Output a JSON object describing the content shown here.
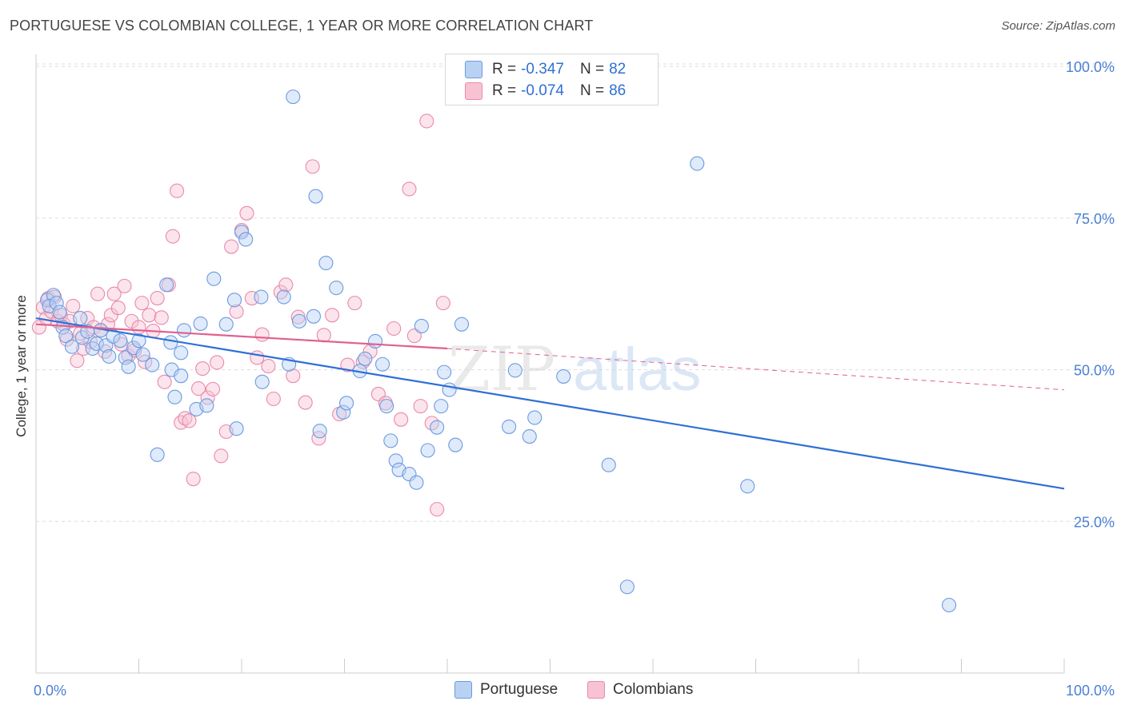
{
  "title": "PORTUGUESE VS COLOMBIAN COLLEGE, 1 YEAR OR MORE CORRELATION CHART",
  "source": "Source: ZipAtlas.com",
  "watermark": {
    "zip": "ZIP",
    "atlas": "atlas"
  },
  "colors": {
    "blue_fill": "#b9d1f3",
    "blue_stroke": "#6b9be0",
    "blue_line": "#2e6fd6",
    "pink_fill": "#f7c3d3",
    "pink_stroke": "#e98aab",
    "pink_line": "#e0608e",
    "axis_text": "#4a7fd4",
    "grid": "#dddddd"
  },
  "legend": {
    "rows": [
      {
        "r_label": "R =",
        "r_value": "-0.347",
        "n_label": "N =",
        "n_value": "82"
      },
      {
        "r_label": "R =",
        "r_value": "-0.074",
        "n_label": "N =",
        "n_value": "86"
      }
    ]
  },
  "bottom_legend": {
    "items": [
      "Portuguese",
      "Colombians"
    ]
  },
  "chart_data": {
    "type": "scatter",
    "title": "PORTUGUESE VS COLOMBIAN COLLEGE, 1 YEAR OR MORE CORRELATION CHART",
    "xlabel": "",
    "ylabel": "College, 1 year or more",
    "xlim": [
      0,
      100
    ],
    "ylim": [
      0,
      102
    ],
    "x_tick_labels": [
      "0.0%",
      "100.0%"
    ],
    "y_ticks": [
      25,
      50,
      75,
      100
    ],
    "y_tick_labels": [
      "25.0%",
      "50.0%",
      "75.0%",
      "100.0%"
    ],
    "grid": true,
    "series": [
      {
        "name": "Portuguese",
        "r": -0.347,
        "n": 82,
        "trend": {
          "x0": 0,
          "y0": 58.5,
          "x1": 100,
          "y1": 30.4
        },
        "points": [
          [
            1.1,
            61.5
          ],
          [
            1.7,
            62.3
          ],
          [
            1.3,
            60.5
          ],
          [
            2.0,
            61.0
          ],
          [
            2.3,
            59.5
          ],
          [
            2.6,
            57.0
          ],
          [
            2.9,
            55.6
          ],
          [
            3.5,
            53.8
          ],
          [
            4.3,
            58.5
          ],
          [
            4.5,
            55.3
          ],
          [
            5.0,
            56.3
          ],
          [
            5.5,
            53.5
          ],
          [
            5.9,
            54.3
          ],
          [
            6.3,
            56.5
          ],
          [
            6.8,
            54.0
          ],
          [
            7.1,
            52.2
          ],
          [
            7.5,
            55.5
          ],
          [
            8.2,
            54.8
          ],
          [
            8.7,
            52.0
          ],
          [
            9.0,
            50.5
          ],
          [
            9.5,
            53.6
          ],
          [
            10.0,
            54.8
          ],
          [
            10.4,
            52.5
          ],
          [
            11.3,
            50.8
          ],
          [
            12.7,
            64.0
          ],
          [
            13.2,
            50.0
          ],
          [
            14.1,
            49.0
          ],
          [
            15.6,
            43.5
          ],
          [
            16.6,
            44.1
          ],
          [
            13.5,
            45.5
          ],
          [
            11.8,
            36.0
          ],
          [
            14.1,
            52.8
          ],
          [
            13.1,
            54.5
          ],
          [
            14.4,
            56.5
          ],
          [
            16.0,
            57.6
          ],
          [
            17.3,
            65.0
          ],
          [
            18.5,
            57.5
          ],
          [
            19.3,
            61.5
          ],
          [
            19.5,
            40.3
          ],
          [
            20.0,
            72.7
          ],
          [
            20.4,
            71.5
          ],
          [
            21.9,
            62.0
          ],
          [
            22.0,
            48.0
          ],
          [
            24.1,
            62.0
          ],
          [
            24.6,
            50.9
          ],
          [
            25.0,
            95.0
          ],
          [
            25.6,
            58.0
          ],
          [
            27.2,
            78.6
          ],
          [
            27.0,
            58.8
          ],
          [
            27.6,
            39.9
          ],
          [
            28.2,
            67.6
          ],
          [
            29.2,
            63.5
          ],
          [
            29.9,
            43.0
          ],
          [
            30.2,
            44.5
          ],
          [
            33.7,
            50.9
          ],
          [
            31.5,
            49.8
          ],
          [
            32.0,
            51.8
          ],
          [
            33.0,
            54.7
          ],
          [
            34.1,
            44.0
          ],
          [
            35.0,
            35.0
          ],
          [
            34.5,
            38.3
          ],
          [
            35.3,
            33.5
          ],
          [
            36.3,
            32.8
          ],
          [
            37.0,
            31.4
          ],
          [
            37.5,
            57.2
          ],
          [
            38.1,
            36.7
          ],
          [
            39.0,
            40.5
          ],
          [
            39.4,
            44.0
          ],
          [
            39.7,
            49.6
          ],
          [
            40.2,
            46.7
          ],
          [
            40.8,
            37.6
          ],
          [
            41.4,
            57.5
          ],
          [
            46.0,
            40.6
          ],
          [
            46.6,
            49.9
          ],
          [
            48.0,
            39.0
          ],
          [
            48.5,
            42.1
          ],
          [
            51.3,
            48.9
          ],
          [
            55.7,
            34.3
          ],
          [
            57.5,
            14.2
          ],
          [
            64.3,
            84.0
          ],
          [
            69.2,
            30.8
          ],
          [
            88.8,
            11.2
          ]
        ]
      },
      {
        "name": "Colombians",
        "r": -0.074,
        "n": 86,
        "trend": {
          "x0": 0,
          "y0": 57.5,
          "x1": 40,
          "y1": 53.5,
          "dashed_to": {
            "x": 100,
            "y": 46.7
          }
        },
        "points": [
          [
            0.3,
            57.0
          ],
          [
            0.7,
            60.3
          ],
          [
            1.0,
            58.5
          ],
          [
            1.2,
            61.8
          ],
          [
            1.5,
            59.6
          ],
          [
            1.8,
            62.0
          ],
          [
            2.1,
            58.0
          ],
          [
            2.4,
            59.0
          ],
          [
            2.7,
            57.5
          ],
          [
            3.0,
            55.0
          ],
          [
            3.3,
            58.0
          ],
          [
            3.6,
            60.5
          ],
          [
            4.0,
            51.5
          ],
          [
            4.3,
            56.0
          ],
          [
            4.6,
            53.5
          ],
          [
            5.0,
            58.5
          ],
          [
            5.3,
            54.6
          ],
          [
            5.6,
            57.0
          ],
          [
            6.0,
            62.5
          ],
          [
            6.3,
            56.5
          ],
          [
            6.7,
            53.0
          ],
          [
            7.0,
            57.5
          ],
          [
            7.3,
            59.0
          ],
          [
            7.6,
            62.5
          ],
          [
            8.0,
            60.2
          ],
          [
            8.3,
            54.2
          ],
          [
            8.6,
            63.8
          ],
          [
            9.0,
            52.3
          ],
          [
            9.3,
            58.0
          ],
          [
            9.6,
            53.2
          ],
          [
            10.0,
            57.0
          ],
          [
            10.3,
            61.0
          ],
          [
            10.6,
            51.3
          ],
          [
            11.0,
            59.0
          ],
          [
            11.4,
            56.4
          ],
          [
            11.8,
            61.8
          ],
          [
            12.2,
            58.6
          ],
          [
            12.5,
            48.0
          ],
          [
            12.9,
            64.0
          ],
          [
            13.3,
            72.0
          ],
          [
            13.7,
            79.5
          ],
          [
            14.1,
            41.3
          ],
          [
            14.5,
            42.0
          ],
          [
            14.9,
            41.6
          ],
          [
            15.3,
            32.0
          ],
          [
            15.8,
            46.9
          ],
          [
            16.2,
            50.2
          ],
          [
            16.7,
            45.4
          ],
          [
            17.2,
            46.8
          ],
          [
            17.6,
            51.2
          ],
          [
            18.0,
            35.8
          ],
          [
            18.5,
            39.8
          ],
          [
            19.0,
            70.3
          ],
          [
            19.5,
            59.6
          ],
          [
            20.0,
            73.0
          ],
          [
            20.5,
            75.8
          ],
          [
            21.0,
            61.8
          ],
          [
            21.5,
            52.0
          ],
          [
            22.0,
            55.8
          ],
          [
            22.6,
            50.6
          ],
          [
            23.1,
            45.2
          ],
          [
            23.8,
            62.8
          ],
          [
            24.3,
            64.0
          ],
          [
            25.0,
            49.0
          ],
          [
            25.5,
            58.7
          ],
          [
            26.2,
            44.6
          ],
          [
            26.9,
            83.5
          ],
          [
            27.5,
            38.7
          ],
          [
            28.0,
            55.7
          ],
          [
            28.8,
            59.0
          ],
          [
            29.5,
            42.7
          ],
          [
            30.3,
            50.8
          ],
          [
            31.0,
            61.0
          ],
          [
            31.8,
            51.3
          ],
          [
            32.5,
            53.0
          ],
          [
            33.3,
            46.0
          ],
          [
            34.0,
            44.5
          ],
          [
            34.8,
            56.8
          ],
          [
            35.5,
            41.8
          ],
          [
            36.3,
            79.8
          ],
          [
            36.8,
            55.6
          ],
          [
            37.4,
            44.0
          ],
          [
            38.0,
            91.0
          ],
          [
            38.5,
            41.2
          ],
          [
            39.0,
            27.0
          ],
          [
            39.6,
            61.0
          ]
        ]
      }
    ]
  }
}
